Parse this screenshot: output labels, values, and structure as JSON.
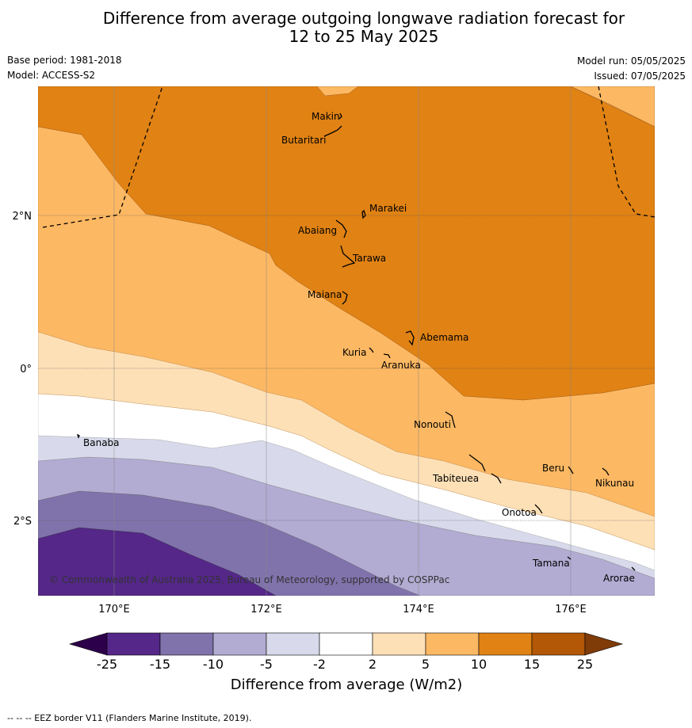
{
  "title_line1": "Difference from average outgoing longwave radiation forecast for",
  "title_line2": "12 to 25 May 2025",
  "base_period": "Base period: 1981-2018",
  "model": "Model: ACCESS-S2",
  "model_run": "Model run: 05/05/2025",
  "issued": "Issued: 07/05/2025",
  "copyright": "© Commonwealth of Australia 2025, Bureau of Meteorology, supported by COSPPac",
  "footnote": "--  --  -- EEZ border V11 (Flanders Marine Institute, 2019).",
  "axes": {
    "x_ticks": [
      "170°E",
      "172°E",
      "174°E",
      "176°E"
    ],
    "y_ticks": [
      "2°N",
      "0°",
      "2°S"
    ]
  },
  "places": [
    {
      "name": "Makin"
    },
    {
      "name": "Butaritari"
    },
    {
      "name": "Marakei"
    },
    {
      "name": "Abaiang"
    },
    {
      "name": "Tarawa"
    },
    {
      "name": "Maiana"
    },
    {
      "name": "Abemama"
    },
    {
      "name": "Kuria"
    },
    {
      "name": "Aranuka"
    },
    {
      "name": "Nonouti"
    },
    {
      "name": "Banaba"
    },
    {
      "name": "Beru"
    },
    {
      "name": "Tabiteuea"
    },
    {
      "name": "Nikunau"
    },
    {
      "name": "Onotoa"
    },
    {
      "name": "Tamana"
    },
    {
      "name": "Arorae"
    }
  ],
  "colorbar": {
    "title": "Difference from average (W/m2)",
    "ticks": [
      "-25",
      "-15",
      "-10",
      "-5",
      "-2",
      "2",
      "5",
      "10",
      "15",
      "25"
    ],
    "colors": [
      "#2d004b",
      "#542788",
      "#8073ac",
      "#b2abd2",
      "#d8daeb",
      "#ffffff",
      "#fee0b6",
      "#fdb863",
      "#e08214",
      "#b35806",
      "#7f3b08"
    ]
  },
  "colors": {
    "dark_orange": "#e08214",
    "mid_orange": "#fdb863",
    "light_orange": "#fee0b6",
    "white": "#ffffff",
    "light_purple": "#d8daeb",
    "mid_purple": "#b2abd2",
    "purple": "#8073ac",
    "dark_purple": "#542788"
  }
}
